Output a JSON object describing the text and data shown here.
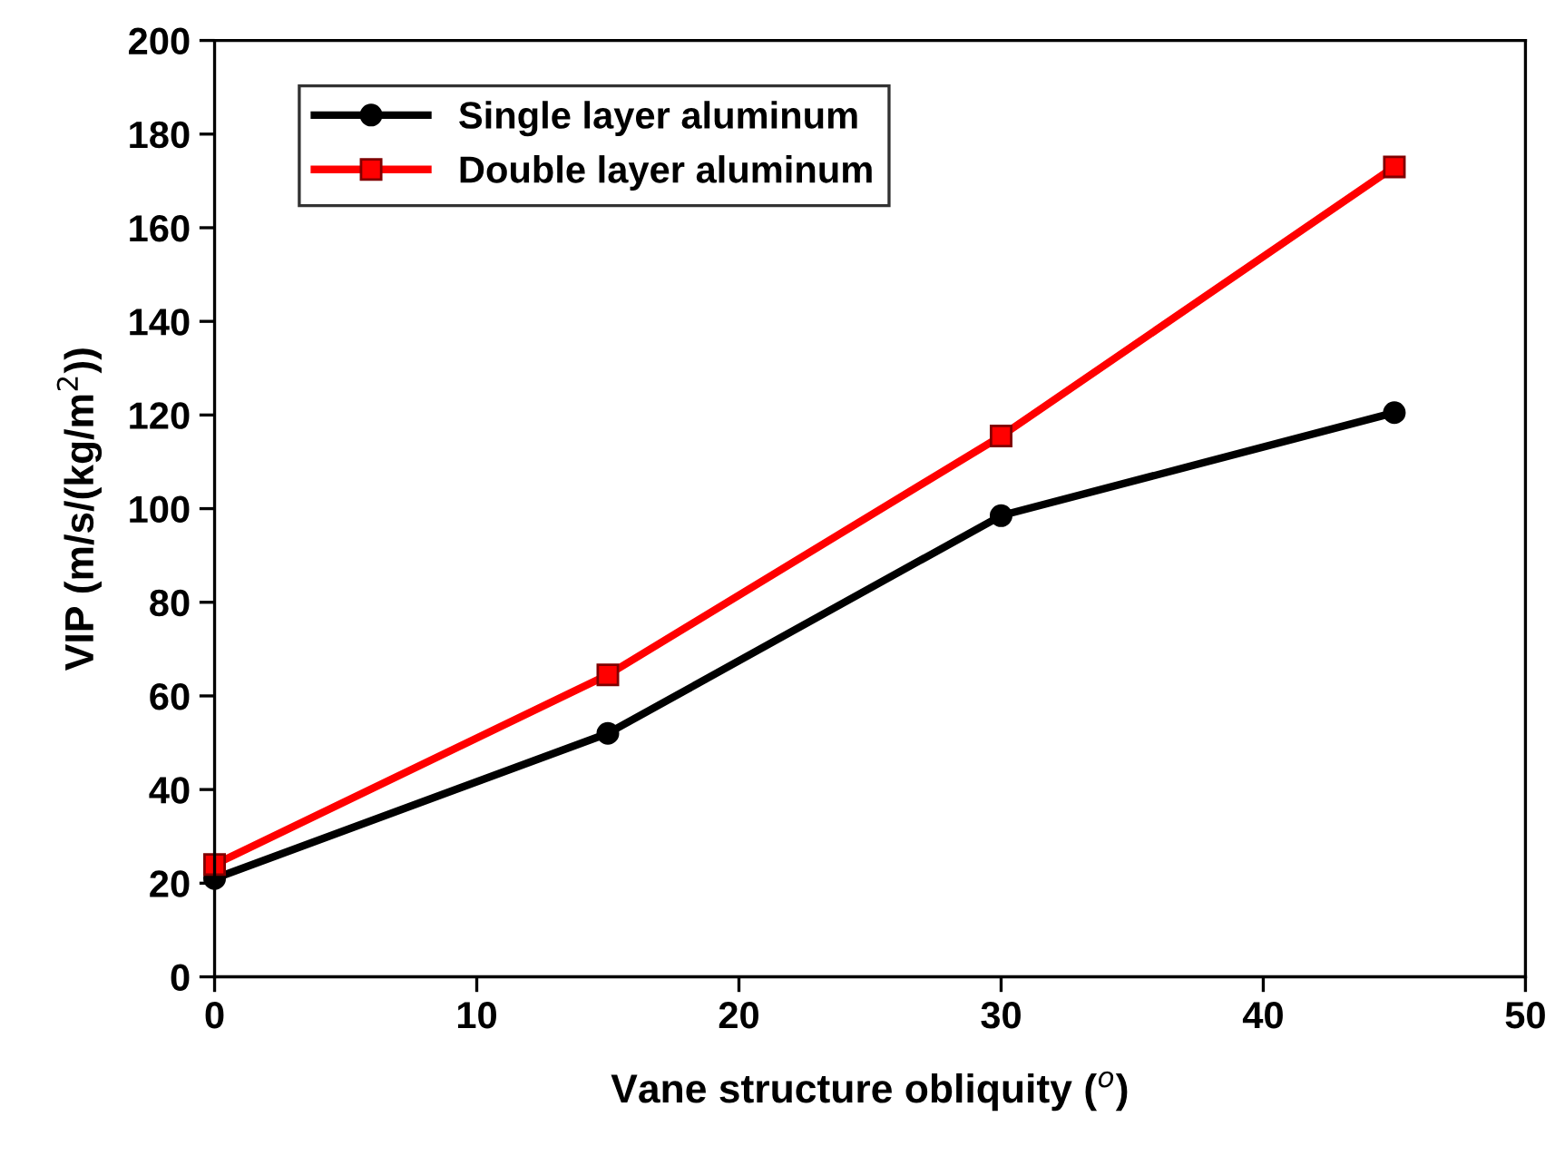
{
  "chart_data": {
    "type": "line",
    "xlabel": "Vane structure obliquity ($^{o}$)",
    "ylabel": "VIP (m/s/(kg/m$^{2}$))",
    "x": [
      0,
      15,
      30,
      45
    ],
    "series": [
      {
        "name": "Single layer aluminum",
        "color": "#000000",
        "values": [
          21,
          52,
          98.5,
          120.5
        ],
        "marker": "circle"
      },
      {
        "name": "Double layer aluminum",
        "color": "#ff0000",
        "values": [
          24,
          64.5,
          115.5,
          173
        ],
        "marker": "square"
      }
    ],
    "xlim": [
      0,
      50
    ],
    "xticks": [
      0,
      10,
      20,
      30,
      40,
      50
    ],
    "ylim": [
      0,
      200
    ],
    "yticks": [
      0,
      20,
      40,
      60,
      80,
      100,
      120,
      140,
      160,
      180,
      200
    ],
    "grid": false,
    "legend": "top left",
    "line_style": "solid"
  }
}
